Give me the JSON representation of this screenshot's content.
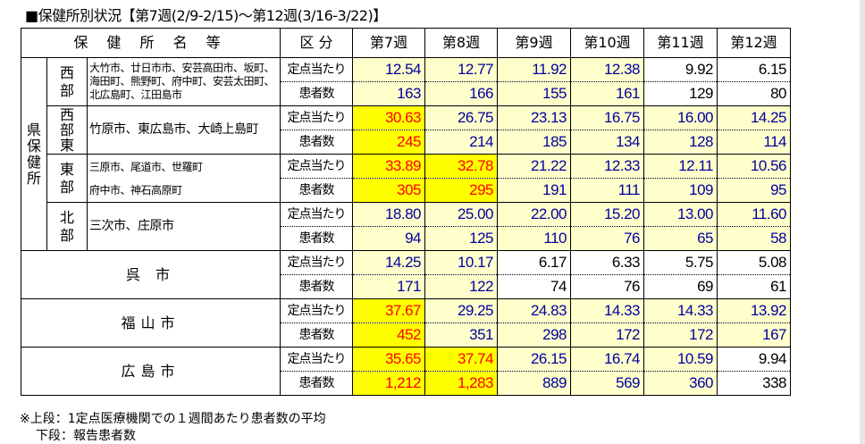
{
  "title": "■保健所別状況【第7週(2/9-2/15)～第12週(3/16-3/22)】",
  "header": {
    "name_col": "保 健 所 名 等",
    "kubun": "区 分",
    "weeks": [
      "第7週",
      "第8週",
      "第9週",
      "第10週",
      "第11週",
      "第12週"
    ]
  },
  "row_labels": {
    "rate": "定点当たり",
    "patients": "患者数"
  },
  "prefecture_label": [
    "県",
    "保",
    "健",
    "所"
  ],
  "groups": [
    {
      "region": [
        "西",
        "部"
      ],
      "names": [
        "大竹市、廿日市市、安芸高田市、坂町、海田町、熊野町、府中町、安芸太田町、北広島町、江田島市"
      ],
      "rate": [
        "12.54",
        "12.77",
        "11.92",
        "12.38",
        "9.92",
        "6.15"
      ],
      "patients": [
        "163",
        "166",
        "155",
        "161",
        "129",
        "80"
      ],
      "fill": [
        "l",
        "l",
        "l",
        "l",
        "w",
        "w"
      ]
    },
    {
      "region": [
        "西",
        "部",
        "東"
      ],
      "names": [
        "竹原市、東広島市、大崎上島町"
      ],
      "rate": [
        "30.63",
        "26.75",
        "23.13",
        "16.75",
        "16.00",
        "14.25"
      ],
      "patients": [
        "245",
        "214",
        "185",
        "134",
        "128",
        "114"
      ],
      "fill": [
        "y",
        "l",
        "l",
        "l",
        "l",
        "l"
      ]
    },
    {
      "region": [
        "東",
        "部"
      ],
      "names": [
        "三原市、尾道市、世羅町",
        "府中市、神石高原町"
      ],
      "rate": [
        "33.89",
        "32.78",
        "21.22",
        "12.33",
        "12.11",
        "10.56"
      ],
      "patients": [
        "305",
        "295",
        "191",
        "111",
        "109",
        "95"
      ],
      "fill": [
        "y",
        "y",
        "l",
        "l",
        "l",
        "l"
      ]
    },
    {
      "region": [
        "北",
        "部"
      ],
      "names": [
        "三次市、庄原市"
      ],
      "rate": [
        "18.80",
        "25.00",
        "22.00",
        "15.20",
        "13.00",
        "11.60"
      ],
      "patients": [
        "94",
        "125",
        "110",
        "76",
        "65",
        "58"
      ],
      "fill": [
        "l",
        "l",
        "l",
        "l",
        "l",
        "l"
      ]
    },
    {
      "city": "呉 市",
      "rate": [
        "14.25",
        "10.17",
        "6.17",
        "6.33",
        "5.75",
        "5.08"
      ],
      "patients": [
        "171",
        "122",
        "74",
        "76",
        "69",
        "61"
      ],
      "fill": [
        "l",
        "l",
        "w",
        "w",
        "w",
        "w"
      ]
    },
    {
      "city": "福山市",
      "rate": [
        "37.67",
        "29.25",
        "24.83",
        "14.33",
        "14.33",
        "13.92"
      ],
      "patients": [
        "452",
        "351",
        "298",
        "172",
        "172",
        "167"
      ],
      "fill": [
        "y",
        "l",
        "l",
        "l",
        "l",
        "l"
      ]
    },
    {
      "city": "広島市",
      "rate": [
        "35.65",
        "37.74",
        "26.15",
        "16.74",
        "10.59",
        "9.94"
      ],
      "patients": [
        "1,212",
        "1,283",
        "889",
        "569",
        "360",
        "338"
      ],
      "fill": [
        "y",
        "y",
        "l",
        "l",
        "l",
        "w"
      ]
    }
  ],
  "colors": {
    "alert_bg": "#ffff00",
    "alert_text": "#ff0000",
    "normal_bg": "#ffffcc",
    "normal_text": "#0000a0",
    "low_bg": "#ffffff",
    "low_text": "#000000"
  },
  "notes": [
    "※上段：1定点医療機関での１週間あたり患者数の平均",
    "下段：報告患者数"
  ]
}
